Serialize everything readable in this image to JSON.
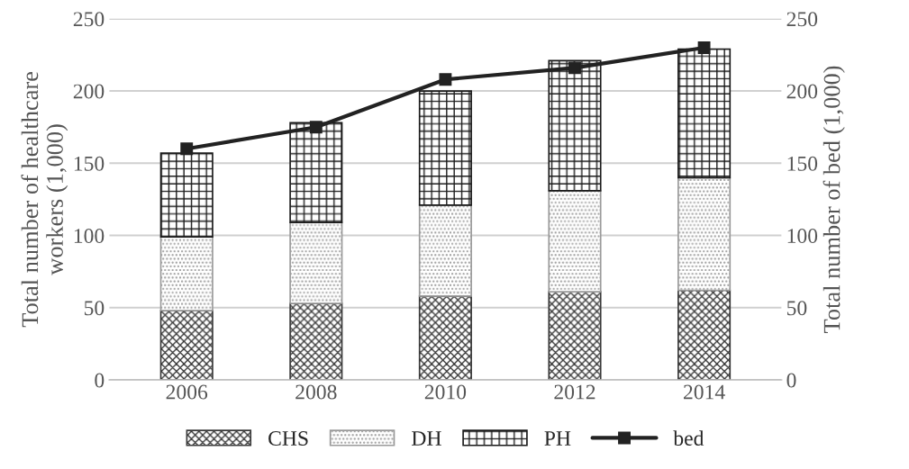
{
  "chart_data": {
    "type": "bar",
    "stacked": true,
    "categories": [
      "2006",
      "2008",
      "2010",
      "2012",
      "2014"
    ],
    "ylabel": "Total number of healthcare\nworkers (1,000)",
    "y2label": "Total number of bed (1,000)",
    "ylim": [
      0,
      250
    ],
    "yticks": [
      0,
      50,
      100,
      150,
      200,
      250
    ],
    "y2lim": [
      0,
      250
    ],
    "y2ticks": [
      0,
      50,
      100,
      150,
      200,
      250
    ],
    "grid": "y",
    "legend": "bottom",
    "series": [
      {
        "name": "CHS",
        "color": "#3a3a3a",
        "values": [
          48,
          53,
          58,
          61,
          62
        ]
      },
      {
        "name": "DH",
        "color": "#9a9a9a",
        "values": [
          51,
          56,
          63,
          70,
          78
        ]
      },
      {
        "name": "PH",
        "color": "#1a1a1a",
        "values": [
          58,
          69,
          79,
          90,
          89
        ]
      },
      {
        "name": "bed",
        "type": "line",
        "axis": "y2",
        "color": "#222222",
        "marker": "square",
        "line_style": "solid",
        "values": [
          160,
          175,
          208,
          216,
          230
        ]
      }
    ]
  }
}
